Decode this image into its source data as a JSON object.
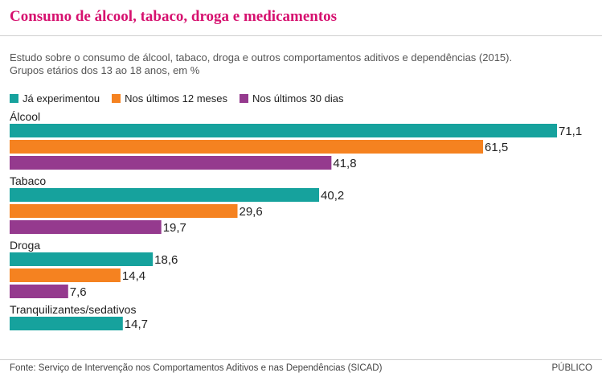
{
  "title": "Consumo de álcool, tabaco, droga e medicamentos",
  "subtitle_lines": [
    "Estudo sobre o consumo de álcool, tabaco, droga e outros comportamentos aditivos e dependências (2015).",
    "Grupos etários dos 13 ao 18 anos, em %"
  ],
  "source": "Fonte: Serviço  de Intervenção nos Comportamentos Aditivos e nas Dependências (SICAD)",
  "brand": "PÚBLICO",
  "colors": {
    "title": "#d6116f",
    "series": [
      "#16a29d",
      "#f58220",
      "#953a8e"
    ]
  },
  "chart_data": {
    "type": "bar",
    "orientation": "horizontal",
    "categories": [
      "Álcool",
      "Tabaco",
      "Droga",
      "Tranquilizantes/sedativos"
    ],
    "series": [
      {
        "name": "Já experimentou",
        "values": [
          71.1,
          40.2,
          18.6,
          14.7
        ],
        "labels": [
          "71,1",
          "40,2",
          "18,6",
          "14,7"
        ]
      },
      {
        "name": "Nos últimos 12 meses",
        "values": [
          61.5,
          29.6,
          14.4,
          null
        ],
        "labels": [
          "61,5",
          "29,6",
          "14,4",
          null
        ]
      },
      {
        "name": "Nos últimos 30 dias",
        "values": [
          41.8,
          19.7,
          7.6,
          null
        ],
        "labels": [
          "41,8",
          "19,7",
          "7,6",
          null
        ]
      }
    ],
    "xlim": [
      0,
      71.1
    ],
    "legend": "top-left",
    "grid": false
  }
}
